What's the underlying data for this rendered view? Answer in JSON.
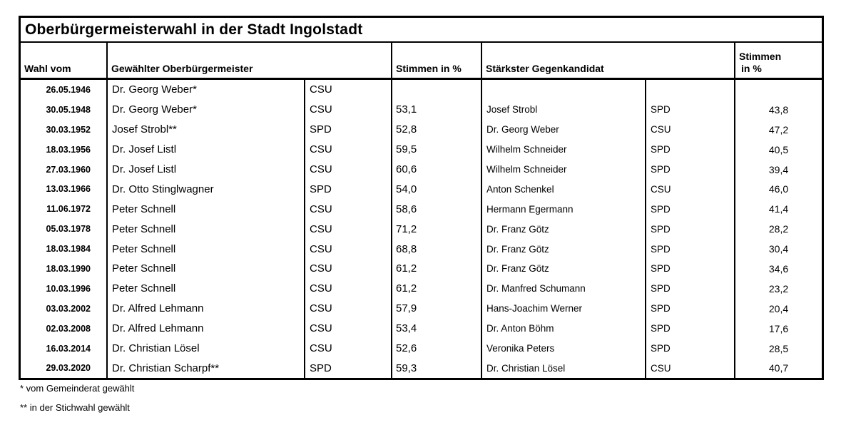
{
  "title": "Oberbürgermeisterwahl in der Stadt Ingolstadt",
  "headers": {
    "date": "Wahl vom",
    "mayor": "Gewählter Oberbürgermeister",
    "mayor_pct": "Stimmen in %",
    "opponent": "Stärkster Gegenkandidat",
    "opponent_pct_line1": "Stimmen",
    "opponent_pct_line2": "in %"
  },
  "rows": [
    {
      "date": "26.05.1946",
      "mayor": "Dr. Georg Weber*",
      "mayor_party": "CSU",
      "mayor_pct": "",
      "opponent": "",
      "opponent_party": "",
      "opponent_pct": "",
      "emphasis_right": false
    },
    {
      "date": "30.05.1948",
      "mayor": "Dr. Georg Weber*",
      "mayor_party": "CSU",
      "mayor_pct": "53,1",
      "opponent": "Josef Strobl",
      "opponent_party": "SPD",
      "opponent_pct": "43,8",
      "emphasis_right": false
    },
    {
      "date": "30.03.1952",
      "mayor": "Josef Strobl**",
      "mayor_party": "SPD",
      "mayor_pct": "52,8",
      "opponent": "Dr. Georg Weber",
      "opponent_party": "CSU",
      "opponent_pct": "47,2",
      "emphasis_right": false
    },
    {
      "date": "18.03.1956",
      "mayor": "Dr. Josef Listl",
      "mayor_party": "CSU",
      "mayor_pct": "59,5",
      "opponent": "Wilhelm Schneider",
      "opponent_party": "SPD",
      "opponent_pct": "40,5",
      "emphasis_right": false
    },
    {
      "date": "27.03.1960",
      "mayor": "Dr. Josef Listl",
      "mayor_party": "CSU",
      "mayor_pct": "60,6",
      "opponent": "Wilhelm Schneider",
      "opponent_party": "SPD",
      "opponent_pct": "39,4",
      "emphasis_right": false
    },
    {
      "date": "13.03.1966",
      "mayor": "Dr. Otto Stinglwagner",
      "mayor_party": "SPD",
      "mayor_pct": "54,0",
      "opponent": "Anton Schenkel",
      "opponent_party": "CSU",
      "opponent_pct": "46,0",
      "emphasis_right": false
    },
    {
      "date": "11.06.1972",
      "mayor": "Peter Schnell",
      "mayor_party": "CSU",
      "mayor_pct": "58,6",
      "opponent": "Hermann Egermann",
      "opponent_party": "SPD",
      "opponent_pct": "41,4",
      "emphasis_right": false
    },
    {
      "date": "05.03.1978",
      "mayor": "Peter Schnell",
      "mayor_party": "CSU",
      "mayor_pct": "71,2",
      "opponent": "Dr. Franz Götz",
      "opponent_party": "SPD",
      "opponent_pct": "28,2",
      "emphasis_right": false
    },
    {
      "date": "18.03.1984",
      "mayor": "Peter Schnell",
      "mayor_party": "CSU",
      "mayor_pct": "68,8",
      "opponent": "Dr. Franz Götz",
      "opponent_party": "SPD",
      "opponent_pct": "30,4",
      "emphasis_right": false
    },
    {
      "date": "18.03.1990",
      "mayor": "Peter Schnell",
      "mayor_party": "CSU",
      "mayor_pct": "61,2",
      "opponent": "Dr. Franz Götz",
      "opponent_party": "SPD",
      "opponent_pct": "34,6",
      "emphasis_right": false
    },
    {
      "date": "10.03.1996",
      "mayor": "Peter Schnell",
      "mayor_party": "CSU",
      "mayor_pct": "61,2",
      "opponent": "Dr. Manfred Schumann",
      "opponent_party": "SPD",
      "opponent_pct": "23,2",
      "emphasis_right": false
    },
    {
      "date": "03.03.2002",
      "mayor": "Dr. Alfred Lehmann",
      "mayor_party": "CSU",
      "mayor_pct": "57,9",
      "opponent": "Hans-Joachim Werner",
      "opponent_party": "SPD",
      "opponent_pct": "20,4",
      "emphasis_right": false
    },
    {
      "date": "02.03.2008",
      "mayor": "Dr. Alfred Lehmann",
      "mayor_party": "CSU",
      "mayor_pct": "53,4",
      "opponent": "Dr. Anton Böhm",
      "opponent_party": "SPD",
      "opponent_pct": "17,6",
      "emphasis_right": false
    },
    {
      "date": "16.03.2014",
      "mayor": "Dr. Christian Lösel",
      "mayor_party": "CSU",
      "mayor_pct": "52,6",
      "opponent": "Veronika Peters",
      "opponent_party": "SPD",
      "opponent_pct": "28,5",
      "emphasis_right": false
    },
    {
      "date": "29.03.2020",
      "mayor": "Dr. Christian Scharpf**",
      "mayor_party": "SPD",
      "mayor_pct": "59,3",
      "opponent": "Dr. Christian Lösel",
      "opponent_party": "CSU",
      "opponent_pct": "40,7",
      "emphasis_right": true
    }
  ],
  "footnotes": [
    "* vom Gemeinderat gewählt",
    "** in der Stichwahl gewählt"
  ],
  "colors": {
    "border": "#000000",
    "text": "#000000",
    "background": "#ffffff"
  }
}
